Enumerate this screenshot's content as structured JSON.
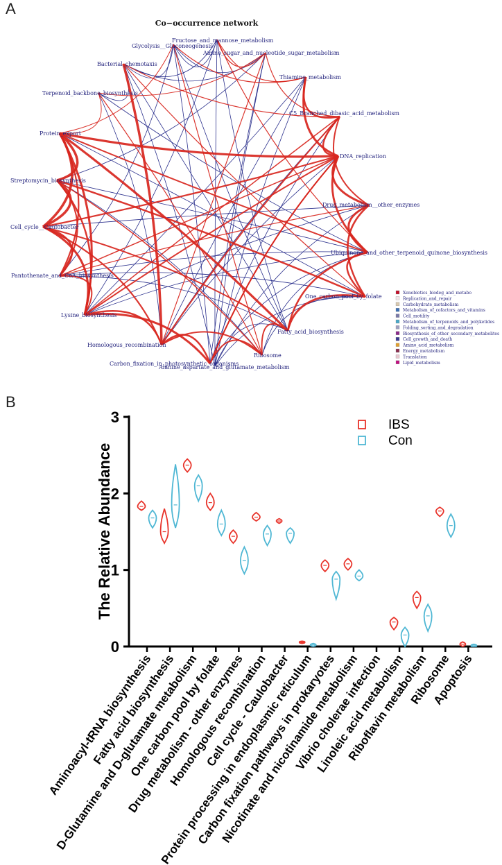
{
  "panel_a": {
    "letter": "A",
    "title": "Co−occurrence network",
    "nodes": [
      "Glycolysis__Gluconeogenesis",
      "Fructose_and_mannose_metabolism",
      "Amino_sugar_and_nucleotide_sugar_metabolism",
      "Bacterial_chemotaxis",
      "Thiamine_metabolism",
      "Terpenoid_backbone_biosynthesis",
      "C5_Branched_dibasic_acid_metabolism",
      "Protein_export",
      "DNA_replication",
      "Streptomycin_biosynthesis",
      "Drug_metabolism__other_enzymes",
      "Cell_cycle__Caulobacter",
      "Ubiquinone_and_other_terpenoid_quinone_biosynthesis",
      "Pantothenate_and_CoA_biosynthesis",
      "One_carbon_pool_by_folate",
      "Lysine_biosynthesis",
      "Fatty_acid_biosynthesis",
      "Homologous_recombination",
      "Ribosome",
      "Carbon_fixation_in_photosynthetic_organisms",
      "Alanine_aspartate_and_glutamate_metabolism"
    ],
    "edge_colors": {
      "positive": "#d8261e",
      "negative": "#2a2f8c"
    },
    "legend": [
      {
        "label": "Xenobiotics_biodeg_and_metabo",
        "color": "#c0102a"
      },
      {
        "label": "Replication_and_repair",
        "color": "#f3e6e9"
      },
      {
        "label": "Carbohydrate_metabolism",
        "color": "#d9c9b0"
      },
      {
        "label": "Metabolism_of_cofactors_and_vitamins",
        "color": "#3b6fb5"
      },
      {
        "label": "Cell_motility",
        "color": "#7a7aa8"
      },
      {
        "label": "Metabolism_of_terpenoids_and_polyketides",
        "color": "#4aa8c8"
      },
      {
        "label": "Folding_sorting_and_degradation",
        "color": "#a0a0c0"
      },
      {
        "label": "Biosynthesis_of_other_secondary_metabolites",
        "color": "#8a2a8a"
      },
      {
        "label": "Cell_growth_and_death",
        "color": "#3a3a90"
      },
      {
        "label": "Amino_acid_metabolism",
        "color": "#e0a030"
      },
      {
        "label": "Energy_metabolism",
        "color": "#8a3050"
      },
      {
        "label": "Translation",
        "color": "#e8c8d0"
      },
      {
        "label": "Lipid_metabolism",
        "color": "#c01080"
      }
    ]
  },
  "panel_b": {
    "letter": "B"
  },
  "chart_data": {
    "type": "violin",
    "title": "",
    "xlabel": "",
    "ylabel": "The Relative Abundance",
    "ylim": [
      0,
      3
    ],
    "yticks": [
      "0",
      "1",
      "2",
      "3"
    ],
    "categories": [
      "Aminoacyl-tRNA biosynthesis",
      "Fatty acid biosynthesis",
      "D-Glutamine and D-glutamate metabolism",
      "One carbon pool by folate",
      "Drug metabolism - other enzymes",
      "Homologous recombination",
      "Cell cycle - Caulobacter",
      "Protein processing in endoplasmic reticulum",
      "Carbon fixation pathways in prokaryotes",
      "Nicotinate and nicotinamide metabolism",
      "Vibrio cholerae infection",
      "Linoleic acid metabolism",
      "Riboflavin metabolism",
      "Ribosome",
      "Apoptosis"
    ],
    "series": [
      {
        "name": "IBS",
        "color": "#e8332a",
        "ranges": [
          [
            1.78,
            1.9
          ],
          [
            1.35,
            1.8
          ],
          [
            2.28,
            2.45
          ],
          [
            1.78,
            2.0
          ],
          [
            1.35,
            1.52
          ],
          [
            1.64,
            1.75
          ],
          [
            1.61,
            1.67
          ],
          [
            0.04,
            0.07
          ],
          [
            0.98,
            1.13
          ],
          [
            1.0,
            1.15
          ],
          null,
          [
            0.22,
            0.38
          ],
          [
            0.5,
            0.72
          ],
          [
            1.7,
            1.82
          ],
          [
            0.0,
            0.06
          ]
        ],
        "medians": [
          1.83,
          1.5,
          2.37,
          1.88,
          1.44,
          1.69,
          1.64,
          0.055,
          1.06,
          1.08,
          null,
          0.32,
          0.64,
          1.77,
          0.03
        ]
      },
      {
        "name": "Con",
        "color": "#4fb7d4",
        "ranges": [
          [
            1.55,
            1.78
          ],
          [
            1.55,
            2.38
          ],
          [
            1.9,
            2.24
          ],
          [
            1.45,
            1.78
          ],
          [
            0.95,
            1.3
          ],
          [
            1.32,
            1.58
          ],
          [
            1.35,
            1.55
          ],
          [
            0.0,
            0.04
          ],
          [
            0.62,
            0.98
          ],
          [
            0.86,
            1.0
          ],
          null,
          [
            0.0,
            0.25
          ],
          [
            0.2,
            0.55
          ],
          [
            1.43,
            1.73
          ],
          [
            0.0,
            0.03
          ]
        ],
        "medians": [
          1.68,
          1.85,
          2.1,
          1.6,
          1.12,
          1.47,
          1.48,
          0.02,
          0.88,
          0.92,
          null,
          0.15,
          0.4,
          1.58,
          0.01
        ]
      }
    ],
    "legend_position": "top-right"
  }
}
